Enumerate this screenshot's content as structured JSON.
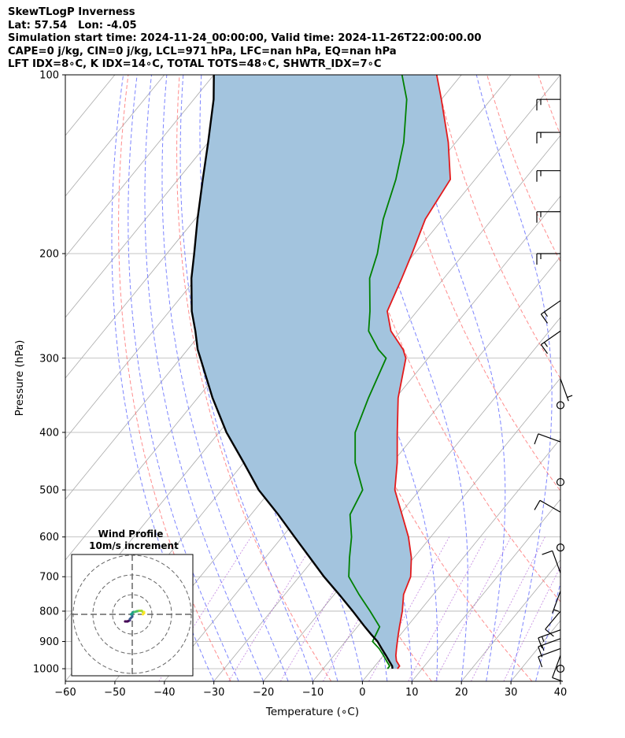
{
  "header": {
    "line1": "SkewTLogP Inverness",
    "line2": "Lat: 57.54   Lon: -4.05",
    "line3": "Simulation start time: 2024-11-24_00:00:00, Valid time: 2024-11-26T22:00:00.00",
    "line4": "CAPE=0 j/kg, CIN=0 j/kg, LCL=971 hPa, LFC=nan hPa, EQ=nan hPa",
    "line5": "LFT IDX=8∘C, K IDX=14∘C, TOTAL TOTS=48∘C, SHWTR_IDX=7∘C"
  },
  "colors": {
    "temperature": "#e31a1c",
    "dewpoint": "#008000",
    "parcel": "#000000",
    "cape_fill": "#a3c4de",
    "dry_adiabats": "#ff6666",
    "moist_adiabats": "#6670ff",
    "mixing_ratio": "#9933cc",
    "isotherms": "#aaaaaa",
    "barbs": "#000000"
  },
  "chart_data": {
    "type": "skew-t",
    "xlabel": "Temperature (∘C)",
    "ylabel": "Pressure (hPa)",
    "xlim": [
      -60,
      40
    ],
    "ylim": [
      1050,
      100
    ],
    "y_scale": "log",
    "x_ticks": [
      "−60",
      "−50",
      "−40",
      "−30",
      "−20",
      "−10",
      "0",
      "10",
      "20",
      "30",
      "40"
    ],
    "x_tick_values": [
      -60,
      -50,
      -40,
      -30,
      -20,
      -10,
      0,
      10,
      20,
      30,
      40
    ],
    "y_ticks": [
      "1000",
      "900",
      "800",
      "700",
      "600",
      "500",
      "400",
      "300",
      "200",
      "100"
    ],
    "y_tick_values": [
      1000,
      900,
      800,
      700,
      600,
      500,
      400,
      300,
      200,
      100
    ],
    "grid": true,
    "pressure": [
      1000,
      990,
      970,
      950,
      925,
      900,
      875,
      850,
      800,
      750,
      700,
      650,
      600,
      550,
      500,
      450,
      400,
      350,
      300,
      290,
      270,
      250,
      220,
      200,
      175,
      150,
      130,
      110,
      100
    ],
    "temperature": [
      5,
      5,
      3.5,
      2.5,
      1.5,
      0.5,
      -0.5,
      -1.5,
      -3.5,
      -6,
      -7.5,
      -10.5,
      -14.5,
      -19.5,
      -25,
      -29,
      -34,
      -39.5,
      -44.5,
      -46.5,
      -52,
      -56,
      -58.5,
      -60.5,
      -63.5,
      -65,
      -71.5,
      -80,
      -85
    ],
    "dewpoint": [
      3,
      3,
      1.5,
      0,
      -2,
      -4.5,
      -5,
      -5.5,
      -10,
      -15,
      -20,
      -23,
      -26,
      -30,
      -31.5,
      -37.5,
      -42.5,
      -45.5,
      -48.5,
      -51.5,
      -56.5,
      -59.5,
      -65,
      -67.5,
      -72,
      -76,
      -80.5,
      -87,
      -92
    ],
    "parcel_temperature": [
      4,
      3.5,
      2,
      0.5,
      -1.5,
      -3.5,
      -6,
      -8.5,
      -13.5,
      -19,
      -25,
      -31,
      -37.5,
      -44.5,
      -52.5,
      -60,
      -68.5,
      -77,
      -86,
      -88,
      -91.5,
      -95.5,
      -101,
      -104.5,
      -109.5,
      -115,
      -120,
      -126,
      -130
    ],
    "wind_barbs": [
      {
        "pressure": 1000,
        "kind": "calm"
      },
      {
        "pressure": 950,
        "speed_kt": 10,
        "direction_deg": 200
      },
      {
        "pressure": 925,
        "speed_kt": 10,
        "direction_deg": 250
      },
      {
        "pressure": 890,
        "speed_kt": 15,
        "direction_deg": 250
      },
      {
        "pressure": 860,
        "speed_kt": 15,
        "direction_deg": 250
      },
      {
        "pressure": 800,
        "speed_kt": 10,
        "direction_deg": 220
      },
      {
        "pressure": 740,
        "speed_kt": 5,
        "direction_deg": 200
      },
      {
        "pressure": 690,
        "speed_kt": 10,
        "direction_deg": 340
      },
      {
        "pressure": 625,
        "kind": "calm"
      },
      {
        "pressure": 545,
        "speed_kt": 10,
        "direction_deg": 300
      },
      {
        "pressure": 485,
        "kind": "calm"
      },
      {
        "pressure": 415,
        "speed_kt": 10,
        "direction_deg": 290
      },
      {
        "pressure": 360,
        "kind": "calm"
      },
      {
        "pressure": 325,
        "speed_kt": 5,
        "direction_deg": 160
      },
      {
        "pressure": 270,
        "speed_kt": 15,
        "direction_deg": 235
      },
      {
        "pressure": 240,
        "speed_kt": 15,
        "direction_deg": 235
      },
      {
        "pressure": 200,
        "speed_kt": 15,
        "direction_deg": 270
      },
      {
        "pressure": 170,
        "speed_kt": 15,
        "direction_deg": 270
      },
      {
        "pressure": 145,
        "speed_kt": 15,
        "direction_deg": 270
      },
      {
        "pressure": 125,
        "speed_kt": 15,
        "direction_deg": 270
      },
      {
        "pressure": 110,
        "speed_kt": 15,
        "direction_deg": 270
      }
    ],
    "hodograph": {
      "title": "Wind Profile",
      "subtitle": "10m/s increment",
      "u": [
        -3,
        -3,
        -2,
        -1,
        -1,
        -1,
        -0.5,
        0,
        0,
        0,
        -0.5,
        0,
        0.5,
        1,
        2,
        3,
        4,
        4.5,
        5,
        5,
        4.5
      ],
      "v": [
        -3,
        -3,
        -3,
        -2.5,
        -2.5,
        -2,
        -1.5,
        -1,
        0,
        0,
        0,
        0.5,
        1,
        1,
        1.3,
        1.5,
        1.5,
        1,
        1,
        0.5,
        0
      ]
    }
  }
}
